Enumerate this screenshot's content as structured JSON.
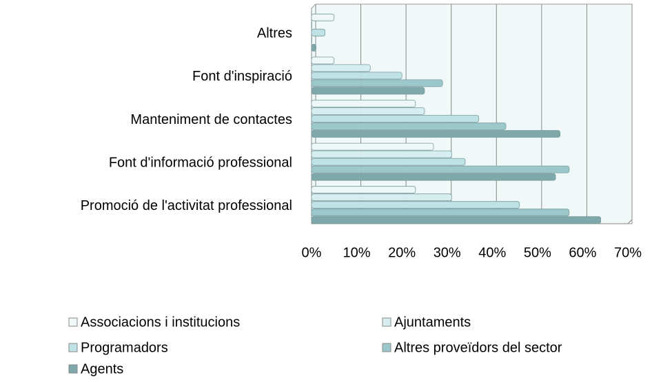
{
  "chart_data": {
    "type": "bar",
    "orientation": "horizontal",
    "categories": [
      "Promoció de l'activitat professional",
      "Font d'informació professional",
      "Manteniment de contactes",
      "Font d'inspiració",
      "Altres"
    ],
    "series": [
      {
        "name": "Associacions i institucions",
        "color": "#eef8f8",
        "values": [
          23,
          27,
          23,
          5,
          5
        ]
      },
      {
        "name": "Ajuntaments",
        "color": "#d6eef0",
        "values": [
          31,
          31,
          25,
          13,
          0
        ]
      },
      {
        "name": "Programadors",
        "color": "#bfe2e6",
        "values": [
          46,
          34,
          37,
          20,
          3
        ]
      },
      {
        "name": "Altres proveïdors del sector",
        "color": "#9cc8cc",
        "values": [
          57,
          57,
          43,
          29,
          0
        ]
      },
      {
        "name": "Agents",
        "color": "#7fa8ab",
        "values": [
          64,
          54,
          55,
          25,
          1
        ]
      }
    ],
    "xlim": [
      0,
      70
    ],
    "xticks": [
      {
        "value": 0,
        "label": "0%"
      },
      {
        "value": 10,
        "label": "10%"
      },
      {
        "value": 20,
        "label": "20%"
      },
      {
        "value": 30,
        "label": "30%"
      },
      {
        "value": 40,
        "label": "40%"
      },
      {
        "value": 50,
        "label": "50%"
      },
      {
        "value": 60,
        "label": "60%"
      },
      {
        "value": 70,
        "label": "70%"
      }
    ],
    "grid": true
  }
}
